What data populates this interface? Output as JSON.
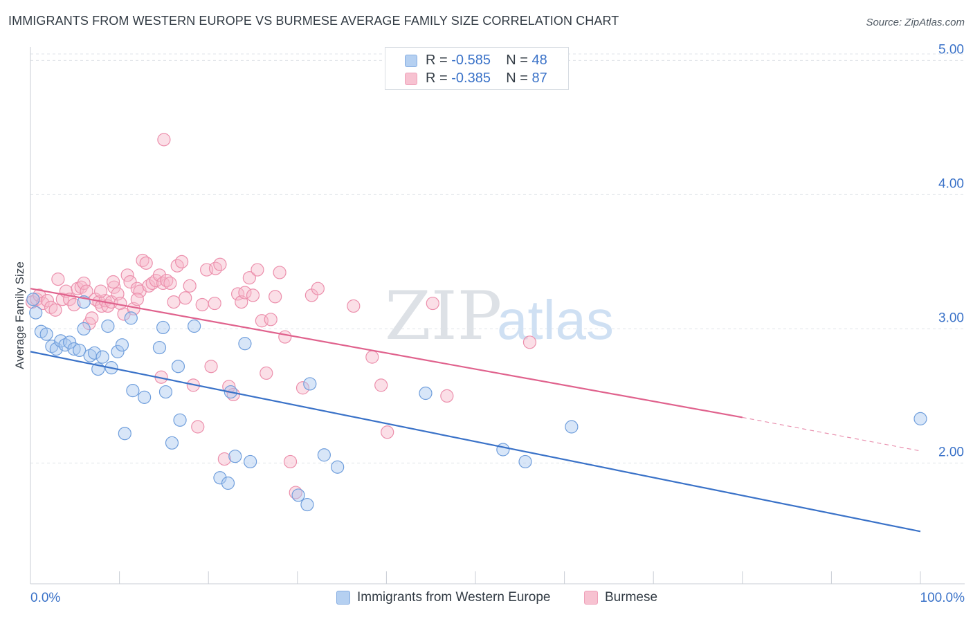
{
  "header": {
    "title": "IMMIGRANTS FROM WESTERN EUROPE VS BURMESE AVERAGE FAMILY SIZE CORRELATION CHART",
    "source": "Source: ZipAtlas.com"
  },
  "watermark": {
    "zip": "ZIP",
    "atlas": "atlas"
  },
  "colors": {
    "blue_fill": "#a9c8ef",
    "blue_stroke": "#6f9edc",
    "blue_line": "#3a72c8",
    "pink_fill": "#f6b8ca",
    "pink_stroke": "#ec8fac",
    "pink_line": "#e0628d",
    "axis_label": "#3a72c8",
    "grid": "#dfe3e8"
  },
  "chart_data": {
    "type": "scatter",
    "title": "IMMIGRANTS FROM WESTERN EUROPE VS BURMESE AVERAGE FAMILY SIZE CORRELATION CHART",
    "xlabel": "",
    "ylabel": "Average Family Size",
    "xlim": [
      0,
      100
    ],
    "ylim": [
      1.1,
      5.1
    ],
    "x_tick_labels": [
      "0.0%",
      "100.0%"
    ],
    "y_ticks": [
      2.0,
      3.0,
      4.0,
      5.0
    ],
    "y_tick_labels": [
      "2.00",
      "3.00",
      "4.00",
      "5.00"
    ],
    "grid": true,
    "legend": {
      "placement": "top-center",
      "entries": [
        {
          "r_label": "R =",
          "r_value": "-0.585",
          "n_label": "N =",
          "n_value": "48"
        },
        {
          "r_label": "R =",
          "r_value": "-0.385",
          "n_label": "N =",
          "n_value": "87"
        }
      ]
    },
    "series": [
      {
        "name": "Immigrants from Western Europe",
        "color": "blue",
        "trend": {
          "x": [
            0,
            100
          ],
          "y": [
            2.83,
            1.49
          ]
        },
        "points": [
          [
            0.3,
            3.22
          ],
          [
            0.6,
            3.12
          ],
          [
            1.2,
            2.98
          ],
          [
            1.8,
            2.96
          ],
          [
            2.4,
            2.87
          ],
          [
            2.9,
            2.85
          ],
          [
            3.4,
            2.91
          ],
          [
            3.9,
            2.88
          ],
          [
            4.4,
            2.9
          ],
          [
            4.9,
            2.85
          ],
          [
            5.5,
            2.84
          ],
          [
            6.0,
            3.0
          ],
          [
            6.7,
            2.8
          ],
          [
            7.2,
            2.82
          ],
          [
            7.6,
            2.7
          ],
          [
            8.1,
            2.79
          ],
          [
            8.7,
            3.02
          ],
          [
            9.1,
            2.71
          ],
          [
            9.8,
            2.83
          ],
          [
            10.3,
            2.88
          ],
          [
            11.3,
            3.08
          ],
          [
            6.0,
            3.2
          ],
          [
            10.6,
            2.22
          ],
          [
            11.5,
            2.54
          ],
          [
            12.8,
            2.49
          ],
          [
            14.5,
            2.86
          ],
          [
            14.9,
            3.01
          ],
          [
            15.2,
            2.53
          ],
          [
            15.9,
            2.15
          ],
          [
            16.6,
            2.72
          ],
          [
            16.8,
            2.32
          ],
          [
            18.4,
            3.02
          ],
          [
            21.3,
            1.89
          ],
          [
            22.2,
            1.85
          ],
          [
            22.5,
            2.53
          ],
          [
            23.0,
            2.05
          ],
          [
            24.1,
            2.89
          ],
          [
            24.7,
            2.01
          ],
          [
            30.1,
            1.76
          ],
          [
            31.1,
            1.69
          ],
          [
            31.4,
            2.59
          ],
          [
            33.0,
            2.06
          ],
          [
            34.5,
            1.97
          ],
          [
            44.4,
            2.52
          ],
          [
            53.1,
            2.1
          ],
          [
            55.6,
            2.01
          ],
          [
            60.8,
            2.27
          ],
          [
            100.0,
            2.33
          ]
        ]
      },
      {
        "name": "Burmese",
        "color": "pink",
        "trend": {
          "x": [
            0,
            80
          ],
          "y": [
            3.3,
            2.34
          ]
        },
        "trend_dashed": {
          "x": [
            80,
            100
          ],
          "y": [
            2.34,
            2.09
          ]
        },
        "points": [
          [
            0.2,
            3.2
          ],
          [
            0.7,
            3.22
          ],
          [
            1.0,
            3.25
          ],
          [
            1.4,
            3.19
          ],
          [
            1.9,
            3.21
          ],
          [
            2.3,
            3.16
          ],
          [
            2.8,
            3.14
          ],
          [
            3.1,
            3.37
          ],
          [
            3.6,
            3.22
          ],
          [
            4.0,
            3.28
          ],
          [
            4.4,
            3.22
          ],
          [
            4.9,
            3.18
          ],
          [
            5.3,
            3.3
          ],
          [
            5.7,
            3.31
          ],
          [
            6.0,
            3.34
          ],
          [
            6.3,
            3.28
          ],
          [
            6.6,
            3.04
          ],
          [
            6.9,
            3.08
          ],
          [
            7.3,
            3.22
          ],
          [
            7.7,
            3.2
          ],
          [
            8.0,
            3.17
          ],
          [
            8.4,
            3.21
          ],
          [
            8.7,
            3.17
          ],
          [
            9.1,
            3.2
          ],
          [
            9.4,
            3.31
          ],
          [
            9.8,
            3.26
          ],
          [
            10.1,
            3.19
          ],
          [
            10.5,
            3.11
          ],
          [
            10.9,
            3.4
          ],
          [
            11.2,
            3.35
          ],
          [
            11.6,
            3.15
          ],
          [
            12.0,
            3.3
          ],
          [
            12.3,
            3.28
          ],
          [
            12.6,
            3.51
          ],
          [
            13.0,
            3.49
          ],
          [
            13.3,
            3.32
          ],
          [
            13.7,
            3.34
          ],
          [
            14.1,
            3.36
          ],
          [
            14.5,
            3.4
          ],
          [
            14.9,
            3.34
          ],
          [
            15.3,
            3.36
          ],
          [
            15.7,
            3.34
          ],
          [
            16.1,
            3.2
          ],
          [
            16.5,
            3.47
          ],
          [
            17.0,
            3.5
          ],
          [
            17.4,
            3.23
          ],
          [
            17.9,
            3.32
          ],
          [
            18.3,
            2.58
          ],
          [
            18.8,
            2.27
          ],
          [
            19.3,
            3.18
          ],
          [
            19.8,
            3.44
          ],
          [
            20.3,
            2.72
          ],
          [
            20.8,
            3.45
          ],
          [
            21.3,
            3.48
          ],
          [
            21.8,
            2.03
          ],
          [
            22.3,
            2.57
          ],
          [
            22.8,
            2.51
          ],
          [
            23.3,
            3.26
          ],
          [
            23.7,
            3.2
          ],
          [
            24.1,
            3.27
          ],
          [
            24.6,
            3.38
          ],
          [
            25.0,
            3.25
          ],
          [
            25.5,
            3.44
          ],
          [
            26.0,
            3.06
          ],
          [
            26.5,
            2.67
          ],
          [
            27.0,
            3.07
          ],
          [
            27.5,
            3.24
          ],
          [
            28.0,
            3.42
          ],
          [
            28.6,
            2.94
          ],
          [
            29.2,
            2.01
          ],
          [
            29.8,
            1.78
          ],
          [
            30.6,
            2.56
          ],
          [
            31.6,
            3.25
          ],
          [
            32.3,
            3.3
          ],
          [
            36.3,
            3.17
          ],
          [
            38.4,
            2.79
          ],
          [
            39.4,
            2.58
          ],
          [
            40.1,
            2.23
          ],
          [
            45.2,
            3.19
          ],
          [
            46.8,
            2.5
          ],
          [
            56.1,
            2.9
          ],
          [
            14.7,
            2.64
          ],
          [
            20.7,
            3.19
          ],
          [
            7.9,
            3.28
          ],
          [
            15.0,
            4.41
          ],
          [
            9.3,
            3.35
          ],
          [
            12.0,
            3.22
          ]
        ]
      }
    ],
    "bottom_legend": [
      "Immigrants from Western Europe",
      "Burmese"
    ]
  }
}
